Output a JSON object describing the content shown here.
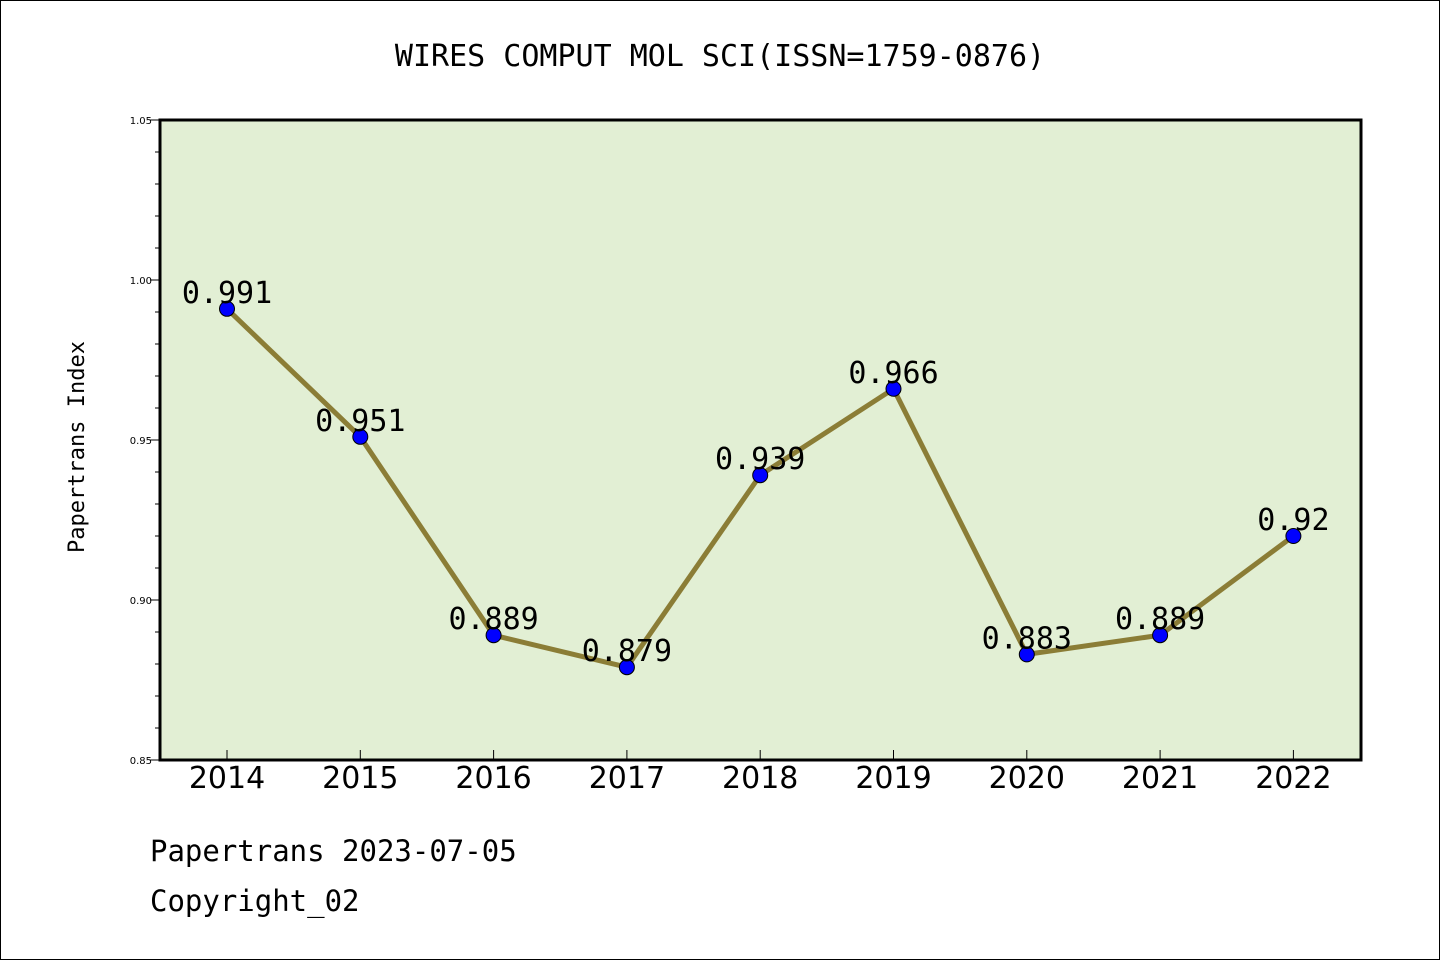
{
  "chart_data": {
    "type": "line",
    "title": "WIRES COMPUT MOL SCI(ISSN=1759-0876)",
    "ylabel": "Papertrans Index",
    "xlabel": "",
    "categories": [
      "2014",
      "2015",
      "2016",
      "2017",
      "2018",
      "2019",
      "2020",
      "2021",
      "2022"
    ],
    "values": [
      0.991,
      0.951,
      0.889,
      0.879,
      0.939,
      0.966,
      0.883,
      0.889,
      0.92
    ],
    "data_labels": [
      "0.991",
      "0.951",
      "0.889",
      "0.879",
      "0.939",
      "0.966",
      "0.883",
      "0.889",
      "0.92"
    ],
    "ylim": [
      0.85,
      1.05
    ],
    "yticks": [
      "0.85",
      "0.90",
      "0.95",
      "1.00",
      "1.05"
    ],
    "ytick_values": [
      0.85,
      0.9,
      0.95,
      1.0,
      1.05
    ],
    "colors": {
      "plot_bg": "#e2efd4",
      "line": "#8b7d36",
      "marker": "#0000ff"
    },
    "grid": false,
    "legend": "none"
  },
  "footer": {
    "date_line": "Papertrans 2023-07-05",
    "copyright": "Copyright_02"
  }
}
